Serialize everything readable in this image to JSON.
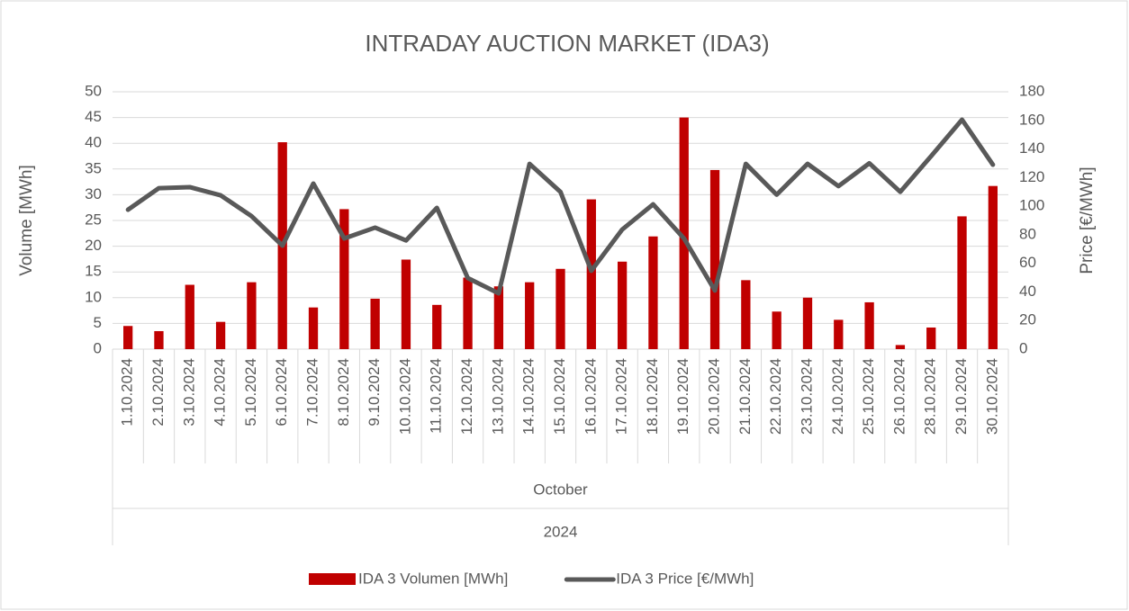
{
  "chart_data": {
    "type": "bar_line",
    "title": "INTRADAY AUCTION MARKET (IDA3)",
    "y_label": "Volume [MWh]",
    "y2_label": "Price [€/MWh]",
    "categories": [
      "1.10.2024",
      "2.10.2024",
      "3.10.2024",
      "4.10.2024",
      "5.10.2024",
      "6.10.2024",
      "7.10.2024",
      "8.10.2024",
      "9.10.2024",
      "10.10.2024",
      "11.10.2024",
      "12.10.2024",
      "13.10.2024",
      "14.10.2024",
      "15.10.2024",
      "16.10.2024",
      "17.10.2024",
      "18.10.2024",
      "19.10.2024",
      "20.10.2024",
      "21.10.2024",
      "22.10.2024",
      "23.10.2024",
      "24.10.2024",
      "25.10.2024",
      "26.10.2024",
      "28.10.2024",
      "29.10.2024",
      "30.10.2024"
    ],
    "x_group_labels": [
      "October",
      "2024"
    ],
    "series": [
      {
        "name": "IDA 3 Volumen [MWh]",
        "type": "bar",
        "color": "#c00000",
        "values": [
          4.5,
          3.5,
          12.5,
          5.3,
          13,
          40.2,
          8.1,
          27.2,
          9.8,
          17.4,
          8.6,
          13.9,
          12.2,
          13,
          15.6,
          29.1,
          17,
          21.9,
          45,
          34.8,
          13.4,
          7.3,
          10,
          5.7,
          9.1,
          0.8,
          4.2,
          25.8,
          31.7
        ]
      },
      {
        "name": "IDA 3 Price [€/MWh]",
        "type": "line",
        "axis": "y2",
        "color": "#595959",
        "values": [
          97.5,
          112.6,
          113.3,
          107.6,
          93,
          72.4,
          115.8,
          77.4,
          85,
          76,
          98.8,
          49.7,
          39,
          129.6,
          110,
          54.8,
          83.7,
          101.3,
          77.4,
          41,
          129.6,
          108,
          129.6,
          114,
          130,
          110,
          135,
          160.5,
          129
        ]
      }
    ],
    "ylim": [
      0,
      50
    ],
    "yticks": [
      0,
      5,
      10,
      15,
      20,
      25,
      30,
      35,
      40,
      45,
      50
    ],
    "y2lim": [
      0,
      180
    ],
    "y2ticks": [
      0,
      20,
      40,
      60,
      80,
      100,
      120,
      140,
      160,
      180
    ],
    "grid": true,
    "legend": "bottom"
  }
}
